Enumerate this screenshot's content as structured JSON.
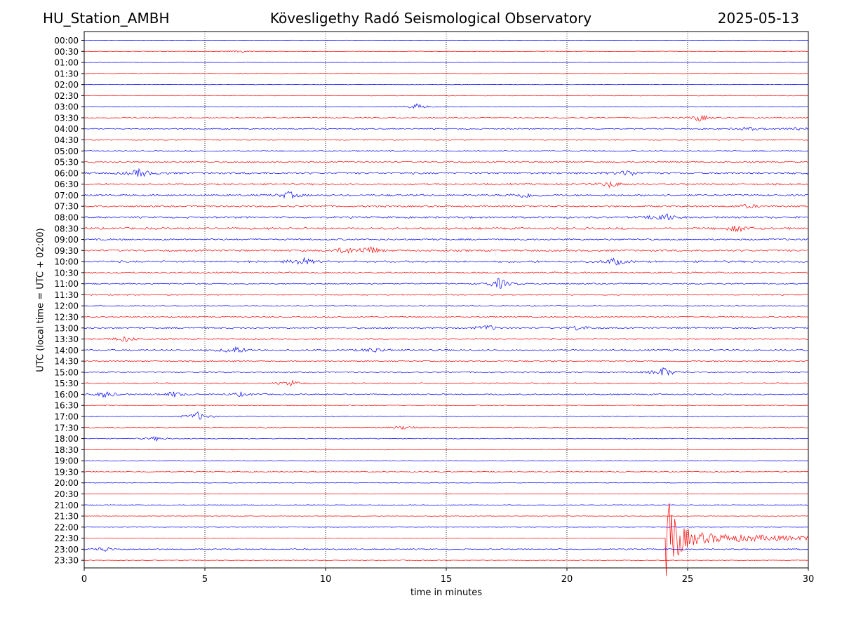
{
  "header": {
    "station": "HU_Station_AMBH",
    "observatory": "Kövesligethy Radó Seismological Observatory",
    "date": "2025-05-13"
  },
  "chart_data": {
    "type": "line",
    "xlabel": "time in minutes",
    "ylabel": "UTC (local time = UTC + 02:00)",
    "xlim": [
      0,
      30
    ],
    "xticks": [
      0,
      5,
      10,
      15,
      20,
      25,
      30
    ],
    "grid": "vertical dotted lines at 5-minute ticks",
    "colors": {
      "even_rows": "#0000ff",
      "odd_rows": "#ff0000"
    },
    "rows": [
      "00:00",
      "00:30",
      "01:00",
      "01:30",
      "02:00",
      "02:30",
      "03:00",
      "03:30",
      "04:00",
      "04:30",
      "05:00",
      "05:30",
      "06:00",
      "06:30",
      "07:00",
      "07:30",
      "08:00",
      "08:30",
      "09:00",
      "09:30",
      "10:00",
      "10:30",
      "11:00",
      "11:30",
      "12:00",
      "12:30",
      "13:00",
      "13:30",
      "14:00",
      "14:30",
      "15:00",
      "15:30",
      "16:00",
      "16:30",
      "17:00",
      "17:30",
      "18:00",
      "18:30",
      "19:00",
      "19:30",
      "20:00",
      "20:30",
      "21:00",
      "21:30",
      "22:00",
      "22:30",
      "23:00",
      "23:30"
    ],
    "noise_level": [
      0.3,
      0.5,
      0.3,
      0.4,
      0.4,
      0.6,
      0.6,
      0.7,
      1.0,
      0.8,
      1.0,
      1.1,
      1.6,
      1.4,
      1.5,
      1.3,
      1.5,
      1.6,
      1.3,
      1.5,
      1.6,
      1.2,
      1.0,
      1.0,
      0.8,
      1.0,
      1.2,
      1.2,
      1.3,
      1.1,
      1.1,
      1.0,
      1.0,
      0.7,
      0.8,
      0.8,
      0.7,
      0.6,
      0.5,
      0.6,
      0.4,
      0.4,
      0.5,
      0.4,
      0.4,
      0.4,
      1.0,
      0.5
    ],
    "events": [
      {
        "row": "00:30",
        "t_min": 6.5,
        "amp": 1.5
      },
      {
        "row": "03:00",
        "t_min": 13.8,
        "amp": 4
      },
      {
        "row": "03:30",
        "t_min": 25.5,
        "amp": 5
      },
      {
        "row": "04:00",
        "t_min": 27.5,
        "amp": 3
      },
      {
        "row": "04:00",
        "t_min": 29.5,
        "amp": 3
      },
      {
        "row": "06:00",
        "t_min": 2.3,
        "amp": 6
      },
      {
        "row": "06:00",
        "t_min": 22.5,
        "amp": 4
      },
      {
        "row": "06:30",
        "t_min": 21.8,
        "amp": 4
      },
      {
        "row": "07:00",
        "t_min": 8.5,
        "amp": 5
      },
      {
        "row": "07:00",
        "t_min": 18.2,
        "amp": 4
      },
      {
        "row": "07:30",
        "t_min": 27.5,
        "amp": 3
      },
      {
        "row": "08:00",
        "t_min": 24.0,
        "amp": 7
      },
      {
        "row": "08:30",
        "t_min": 27.1,
        "amp": 5
      },
      {
        "row": "09:30",
        "t_min": 11.8,
        "amp": 6
      },
      {
        "row": "09:30",
        "t_min": 10.8,
        "amp": 5
      },
      {
        "row": "10:00",
        "t_min": 9.0,
        "amp": 6
      },
      {
        "row": "10:00",
        "t_min": 22.0,
        "amp": 5
      },
      {
        "row": "11:00",
        "t_min": 17.2,
        "amp": 8
      },
      {
        "row": "13:00",
        "t_min": 16.7,
        "amp": 4
      },
      {
        "row": "13:00",
        "t_min": 20.5,
        "amp": 4
      },
      {
        "row": "13:30",
        "t_min": 1.7,
        "amp": 4
      },
      {
        "row": "14:00",
        "t_min": 6.2,
        "amp": 6
      },
      {
        "row": "14:00",
        "t_min": 12.0,
        "amp": 4
      },
      {
        "row": "15:00",
        "t_min": 24.0,
        "amp": 7
      },
      {
        "row": "15:30",
        "t_min": 8.6,
        "amp": 4
      },
      {
        "row": "16:00",
        "t_min": 0.9,
        "amp": 5
      },
      {
        "row": "16:00",
        "t_min": 3.7,
        "amp": 4
      },
      {
        "row": "16:00",
        "t_min": 6.5,
        "amp": 3
      },
      {
        "row": "17:00",
        "t_min": 4.7,
        "amp": 6
      },
      {
        "row": "17:30",
        "t_min": 13.3,
        "amp": 3
      },
      {
        "row": "18:00",
        "t_min": 3.0,
        "amp": 3
      },
      {
        "row": "23:00",
        "t_min": 0.8,
        "amp": 4
      }
    ],
    "earthquake": {
      "row": "22:30",
      "onset_min": 24.1,
      "peak_amp_px": 88,
      "coda_end_min": 30
    }
  }
}
